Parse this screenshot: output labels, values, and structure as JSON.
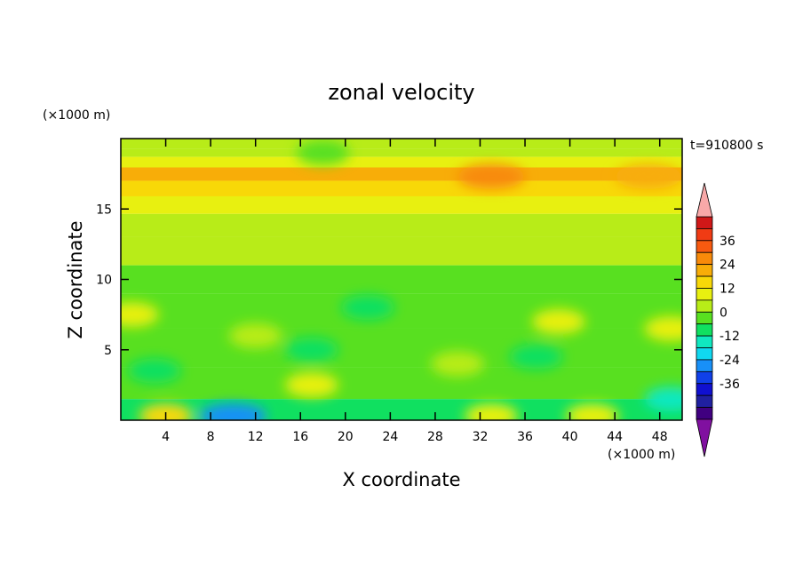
{
  "chart_data": {
    "type": "heatmap",
    "title": "zonal velocity",
    "xlabel": "X coordinate",
    "ylabel": "Z coordinate",
    "x_unit": "(×1000 m)",
    "y_unit": "(×1000 m)",
    "time_label": "t=910800 s",
    "xlim": [
      0,
      50
    ],
    "ylim": [
      0,
      20
    ],
    "x_ticks": [
      4,
      8,
      12,
      16,
      20,
      24,
      28,
      32,
      36,
      40,
      44,
      48
    ],
    "y_ticks": [
      5,
      10,
      15
    ],
    "colorbar": {
      "labels": [
        "36",
        "24",
        "12",
        "0",
        "-12",
        "-24",
        "-36"
      ],
      "label_values": [
        36,
        24,
        12,
        0,
        -12,
        -24,
        -36
      ],
      "levels_top_to_bottom": [
        42,
        36,
        30,
        24,
        18,
        12,
        6,
        0,
        -6,
        -12,
        -18,
        -24,
        -30,
        -36,
        -42
      ],
      "colors_top_to_bottom": [
        "#d01818",
        "#f03b14",
        "#f85a10",
        "#f88a0a",
        "#f8ad08",
        "#f8d808",
        "#e8f010",
        "#b8ec18",
        "#58e020",
        "#10e060",
        "#10e8c0",
        "#10d8f0",
        "#1890f8",
        "#1040e8",
        "#1010d0",
        "#2020a0",
        "#400080"
      ],
      "over_color": "#f8a8a8",
      "under_color": "#8010a0"
    },
    "bands_z": [
      {
        "z": 19.5,
        "value": 4
      },
      {
        "z": 19.0,
        "value": 2
      },
      {
        "z": 18.4,
        "value": 8
      },
      {
        "z": 17.5,
        "value": 20
      },
      {
        "z": 16.5,
        "value": 14
      },
      {
        "z": 15.3,
        "value": 10
      },
      {
        "z": 14.0,
        "value": 4
      },
      {
        "z": 12.0,
        "value": 1
      },
      {
        "z": 10.0,
        "value": -1
      },
      {
        "z": 8.0,
        "value": -4
      },
      {
        "z": 5.0,
        "value": -5
      },
      {
        "z": 2.5,
        "value": -6
      },
      {
        "z": 0.5,
        "value": -10
      }
    ],
    "features": [
      {
        "x": 18,
        "z": 19.0,
        "value": -6
      },
      {
        "x": 33,
        "z": 17.3,
        "value": 26
      },
      {
        "x": 47,
        "z": 17.3,
        "value": 22
      },
      {
        "x": 22,
        "z": 8.0,
        "value": -10
      },
      {
        "x": 17,
        "z": 5.0,
        "value": -12
      },
      {
        "x": 12,
        "z": 6.0,
        "value": 4
      },
      {
        "x": 39,
        "z": 7.0,
        "value": 8
      },
      {
        "x": 49,
        "z": 6.5,
        "value": 8
      },
      {
        "x": 1,
        "z": 7.5,
        "value": 6
      },
      {
        "x": 17,
        "z": 2.5,
        "value": 10
      },
      {
        "x": 30,
        "z": 4.0,
        "value": 2
      },
      {
        "x": 37,
        "z": 4.5,
        "value": -12
      },
      {
        "x": 3,
        "z": 3.5,
        "value": -12
      },
      {
        "x": 10,
        "z": 0.3,
        "value": -30
      },
      {
        "x": 4,
        "z": 0.3,
        "value": 12
      },
      {
        "x": 33,
        "z": 0.3,
        "value": 6
      },
      {
        "x": 49,
        "z": 1.5,
        "value": -18
      },
      {
        "x": 42,
        "z": 0.3,
        "value": 6
      }
    ]
  }
}
